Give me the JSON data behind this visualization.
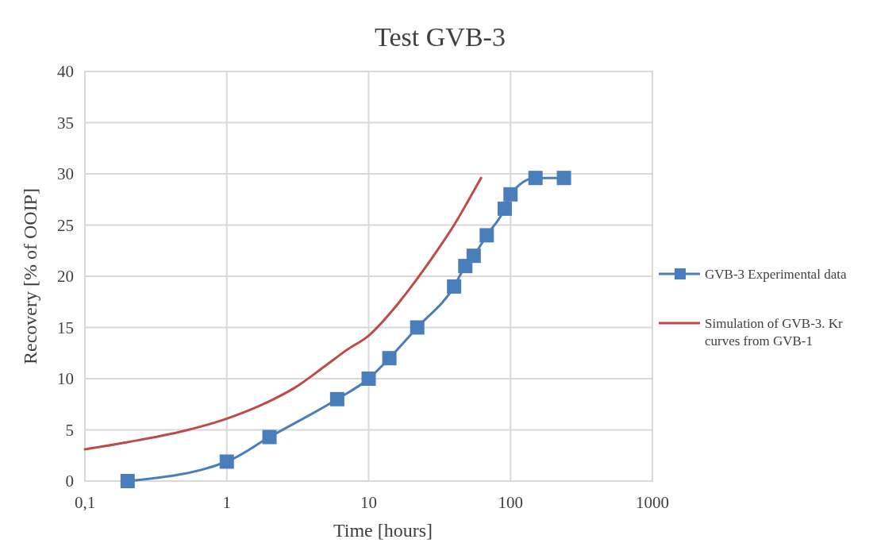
{
  "chart_data": {
    "type": "line",
    "title": "Test GVB-3",
    "xlabel": "Time [hours]",
    "ylabel": "Recovery [% of OOIP]",
    "log": "x",
    "grid": true,
    "legend": "right",
    "line_style": "solid",
    "xlim": [
      0.1,
      1000
    ],
    "xticks": [
      {
        "value": 0.1,
        "label": "0,1"
      },
      1,
      10,
      100,
      1000
    ],
    "ylim": [
      0,
      40
    ],
    "yticks": [
      0,
      5,
      10,
      15,
      20,
      25,
      30,
      35,
      40
    ],
    "series": [
      {
        "name": "GVB-3 Experimental data",
        "color": "#4a7ebb",
        "marker": "square",
        "x": [
          0.2,
          1,
          2,
          6,
          10,
          14,
          22,
          40,
          48,
          55,
          68,
          91,
          100,
          150,
          238
        ],
        "values": [
          0,
          1.9,
          4.3,
          8,
          10,
          12,
          15,
          19,
          21,
          22,
          24,
          26.6,
          28,
          29.6,
          29.6
        ]
      },
      {
        "name": "Simulation of GVB-3. Kr curves from GVB-1",
        "color": "#be4b48",
        "marker": "none",
        "x": [
          0.1,
          0.2,
          0.5,
          1,
          2,
          3,
          5,
          7,
          10,
          15,
          20,
          30,
          40,
          50,
          62
        ],
        "values": [
          3.1,
          3.8,
          4.9,
          6.1,
          7.8,
          9.1,
          11.3,
          12.8,
          14.2,
          16.8,
          19,
          22.4,
          25,
          27.3,
          29.6
        ]
      }
    ]
  }
}
